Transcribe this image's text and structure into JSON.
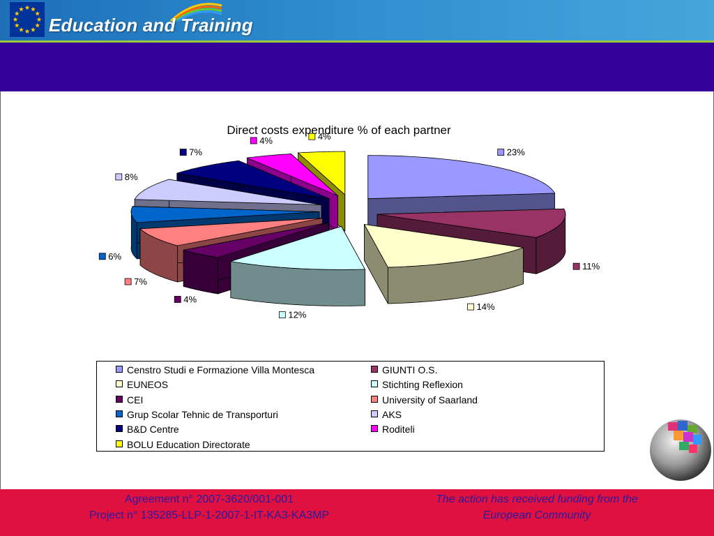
{
  "header": {
    "brand_title": "Education and Training"
  },
  "chart_data": {
    "type": "pie",
    "title": "Direct costs expenditure % of each partner",
    "series": [
      {
        "name": "Censtro Studi e Formazione Villa Montesca",
        "value": 23,
        "label": "23%",
        "color": "#9999ff"
      },
      {
        "name": "GIUNTI O.S.",
        "value": 11,
        "label": "11%",
        "color": "#993366"
      },
      {
        "name": "EUNEOS",
        "value": 14,
        "label": "14%",
        "color": "#ffffcc"
      },
      {
        "name": "Stichting Reflexion",
        "value": 12,
        "label": "12%",
        "color": "#ccffff"
      },
      {
        "name": "CEI",
        "value": 4,
        "label": "4%",
        "color": "#660066"
      },
      {
        "name": "University of Saarland",
        "value": 7,
        "label": "7%",
        "color": "#ff8080"
      },
      {
        "name": "Grup Scolar Tehnic de Transporturi",
        "value": 6,
        "label": "6%",
        "color": "#0066cc"
      },
      {
        "name": "AKS",
        "value": 8,
        "label": "8%",
        "color": "#ccccff"
      },
      {
        "name": "B&D Centre",
        "value": 7,
        "label": "7%",
        "color": "#000080"
      },
      {
        "name": "Roditeli",
        "value": 4,
        "label": "4%",
        "color": "#ff00ff"
      },
      {
        "name": "BOLU Education Directorate",
        "value": 4,
        "label": "4%",
        "color": "#ffff00"
      }
    ],
    "legend_position": "bottom"
  },
  "footer": {
    "left_line1": "Agreement n° 2007-3620/001-001",
    "left_line2": "Project n° 135285-LLP-1-2007-1-IT-KA3-KA3MP",
    "right_line1": "The action has received funding from the",
    "right_line2": "European Community"
  },
  "colors": {
    "header_blue": "#2f8fd0",
    "band_purple": "#330099",
    "footer_red": "#e0103f",
    "footer_text": "#2a1aa0"
  }
}
